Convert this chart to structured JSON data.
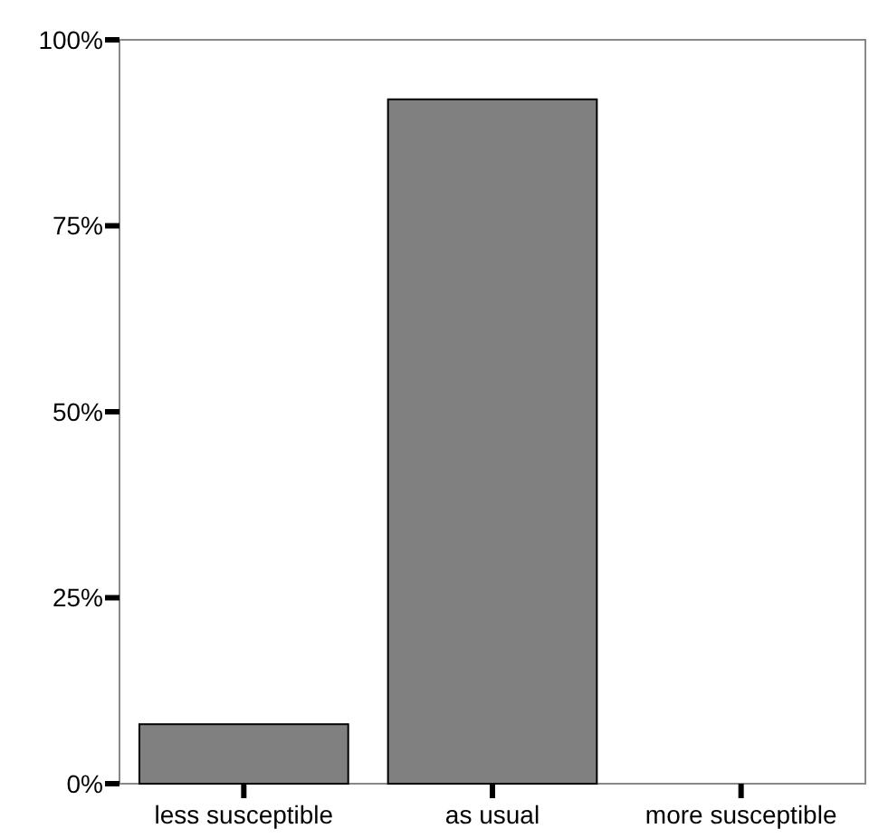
{
  "chart_data": {
    "type": "bar",
    "categories": [
      "less susceptible",
      "as usual",
      "more susceptible"
    ],
    "values": [
      8,
      92,
      0
    ],
    "color": "#808080",
    "ylim": [
      0,
      100
    ],
    "yticks": [
      {
        "value": 0,
        "label": "0%"
      },
      {
        "value": 25,
        "label": "25%"
      },
      {
        "value": 50,
        "label": "50%"
      },
      {
        "value": 75,
        "label": "75%"
      },
      {
        "value": 100,
        "label": "100%"
      }
    ],
    "grid": false
  }
}
